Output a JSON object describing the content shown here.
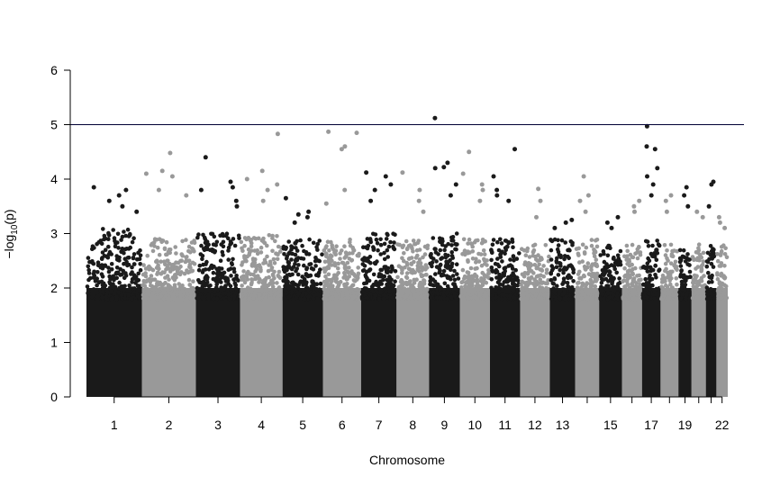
{
  "chart_data": {
    "type": "scatter",
    "subtype": "manhattan",
    "title": "",
    "xlabel": "Chromosome",
    "ylabel_parts": {
      "prefix": "−log",
      "subscript": "10",
      "suffix": "(p)"
    },
    "ylim": [
      0,
      6
    ],
    "yticks": [
      "0",
      "1",
      "2",
      "3",
      "4",
      "5",
      "6"
    ],
    "threshold": 5,
    "grid": false,
    "colors": {
      "odd": "#1a1a1a",
      "even": "#999999",
      "threshold": "#000033"
    },
    "chromosomes": [
      {
        "chr": "1",
        "label": "1",
        "peak": 3.85,
        "dense": 3.1,
        "top": [
          3.85,
          3.8,
          3.7,
          3.6,
          3.5,
          3.4
        ]
      },
      {
        "chr": "2",
        "label": "2",
        "peak": 4.48,
        "dense": 2.9,
        "top": [
          4.48,
          4.15,
          4.1,
          4.05,
          3.8,
          3.7
        ]
      },
      {
        "chr": "3",
        "label": "3",
        "peak": 4.4,
        "dense": 3.0,
        "top": [
          4.4,
          3.95,
          3.85,
          3.8,
          3.6,
          3.5
        ]
      },
      {
        "chr": "4",
        "label": "4",
        "peak": 4.83,
        "dense": 3.0,
        "top": [
          4.83,
          4.15,
          4.0,
          3.9,
          3.8,
          3.6
        ]
      },
      {
        "chr": "5",
        "label": "5",
        "peak": 3.65,
        "dense": 2.9,
        "top": [
          3.65,
          3.4,
          3.35,
          3.3,
          3.2
        ]
      },
      {
        "chr": "6",
        "label": "6",
        "peak": 4.87,
        "dense": 2.9,
        "top": [
          4.87,
          4.85,
          4.6,
          4.55,
          3.8,
          3.55
        ]
      },
      {
        "chr": "7",
        "label": "7",
        "peak": 4.12,
        "dense": 3.0,
        "top": [
          4.12,
          4.05,
          3.9,
          3.8,
          3.6
        ]
      },
      {
        "chr": "8",
        "label": "8",
        "peak": 4.12,
        "dense": 2.9,
        "top": [
          4.12,
          3.8,
          3.6,
          3.4
        ]
      },
      {
        "chr": "9",
        "label": "9",
        "peak": 5.12,
        "dense": 3.0,
        "top": [
          5.12,
          4.3,
          4.22,
          4.2,
          3.9,
          3.7
        ]
      },
      {
        "chr": "10",
        "label": "10",
        "peak": 4.5,
        "dense": 2.9,
        "top": [
          4.5,
          4.1,
          3.9,
          3.8,
          3.6
        ]
      },
      {
        "chr": "11",
        "label": "11",
        "peak": 4.55,
        "dense": 2.9,
        "top": [
          4.55,
          4.05,
          3.8,
          3.7,
          3.6
        ]
      },
      {
        "chr": "12",
        "label": "12",
        "peak": 3.82,
        "dense": 2.8,
        "top": [
          3.82,
          3.6,
          3.3
        ]
      },
      {
        "chr": "13",
        "label": "13",
        "peak": 3.25,
        "dense": 2.9,
        "top": [
          3.25,
          3.2,
          3.1
        ]
      },
      {
        "chr": "14",
        "label": "",
        "peak": 4.05,
        "dense": 2.9,
        "top": [
          4.05,
          3.7,
          3.6,
          3.4
        ]
      },
      {
        "chr": "15",
        "label": "15",
        "peak": 3.3,
        "dense": 2.8,
        "top": [
          3.3,
          3.2,
          3.1
        ]
      },
      {
        "chr": "16",
        "label": "",
        "peak": 3.6,
        "dense": 2.8,
        "top": [
          3.6,
          3.5,
          3.4
        ]
      },
      {
        "chr": "17",
        "label": "17",
        "peak": 4.97,
        "dense": 2.9,
        "top": [
          4.97,
          4.6,
          4.55,
          4.2,
          4.05,
          3.9,
          3.7
        ]
      },
      {
        "chr": "18",
        "label": "",
        "peak": 3.7,
        "dense": 2.8,
        "top": [
          3.7,
          3.6,
          3.4
        ]
      },
      {
        "chr": "19",
        "label": "19",
        "peak": 3.85,
        "dense": 2.8,
        "top": [
          3.85,
          3.7,
          3.5
        ]
      },
      {
        "chr": "20",
        "label": "",
        "peak": 3.4,
        "dense": 2.8,
        "top": [
          3.4,
          3.3
        ]
      },
      {
        "chr": "21",
        "label": "",
        "peak": 3.95,
        "dense": 2.8,
        "top": [
          3.95,
          3.9,
          3.5
        ]
      },
      {
        "chr": "22",
        "label": "22",
        "peak": 3.3,
        "dense": 2.8,
        "top": [
          3.3,
          3.2,
          3.1
        ]
      }
    ]
  }
}
